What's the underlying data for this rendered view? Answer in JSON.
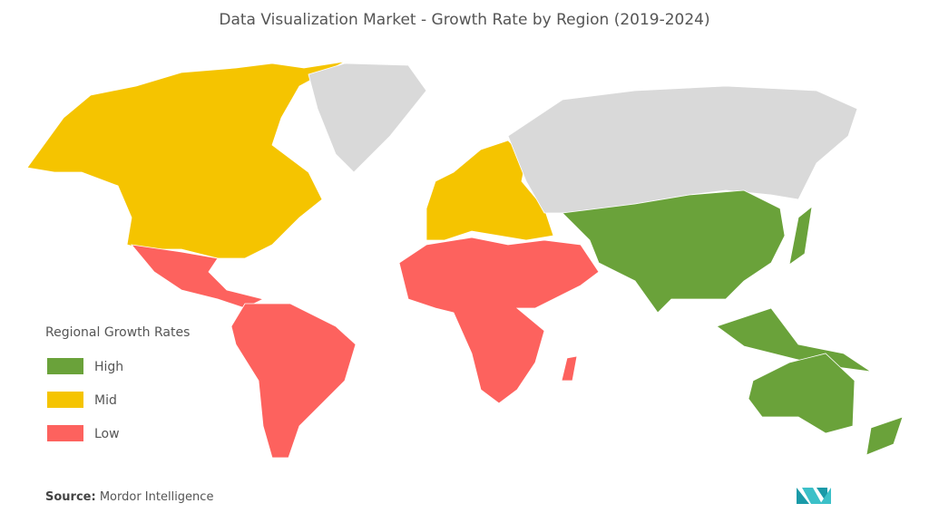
{
  "title": "Data Visualization Market  - Growth Rate by Region (2019-2024)",
  "legend": {
    "title": "Regional Growth Rates",
    "items": [
      {
        "label": "High",
        "color": "#6aa23a"
      },
      {
        "label": "Mid",
        "color": "#f5c400"
      },
      {
        "label": "Low",
        "color": "#fd625e"
      }
    ]
  },
  "other_color": "#d9d9d9",
  "source": {
    "label": "Source:",
    "text": "Mordor Intelligence"
  }
}
